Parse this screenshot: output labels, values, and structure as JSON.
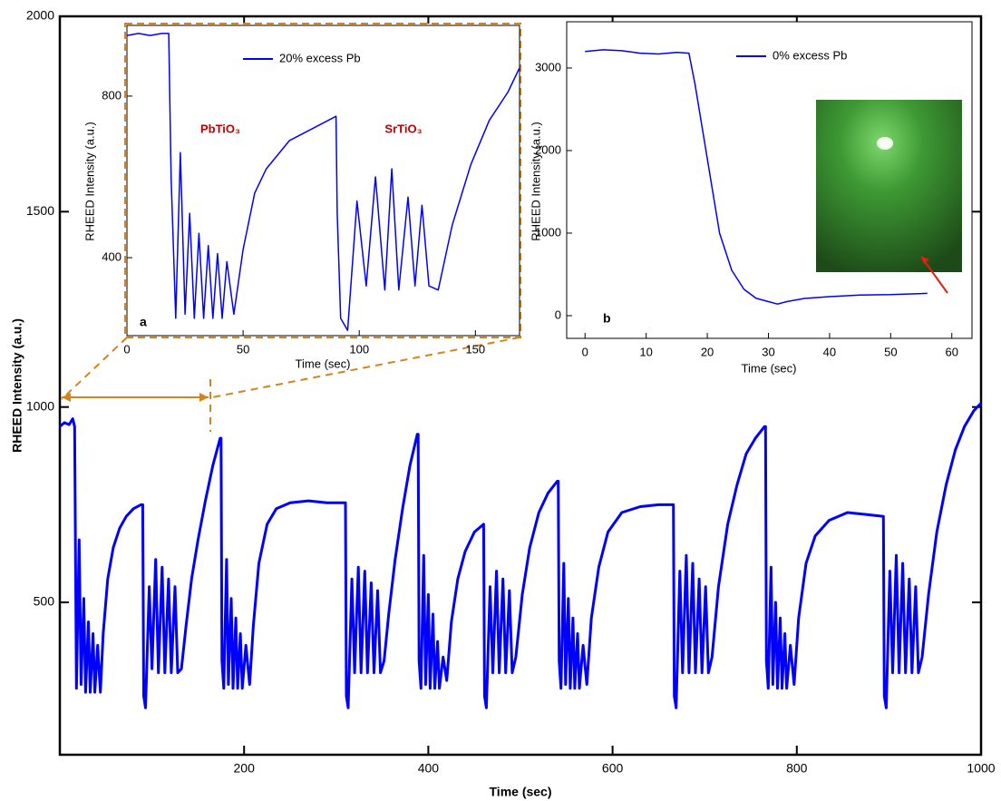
{
  "chart_data": [
    {
      "type": "line",
      "x_label": "Time (sec)",
      "y_label": "RHEED Intensity (a.u.)",
      "xlim": [
        0,
        1000
      ],
      "ylim": [
        110,
        2000
      ],
      "xticks": [
        200,
        400,
        600,
        800,
        1000
      ],
      "yticks": [
        500,
        1000,
        1500,
        2000
      ],
      "x": [
        0,
        5,
        10,
        14,
        16,
        18,
        21,
        23,
        26,
        28,
        31,
        33,
        36,
        38,
        41,
        44,
        47,
        52,
        58,
        65,
        72,
        80,
        88,
        90,
        91,
        93,
        97,
        100,
        104,
        107,
        111,
        114,
        118,
        121,
        125,
        128,
        132,
        137,
        143,
        150,
        158,
        166,
        174,
        175,
        176,
        178,
        181,
        183,
        186,
        188,
        191,
        193,
        196,
        198,
        202,
        206,
        210,
        216,
        225,
        235,
        250,
        270,
        290,
        310,
        311,
        313,
        317,
        320,
        324,
        327,
        331,
        334,
        338,
        341,
        345,
        348,
        352,
        357,
        364,
        372,
        380,
        388,
        389,
        390,
        392,
        395,
        397,
        400,
        402,
        405,
        407,
        410,
        412,
        416,
        420,
        425,
        432,
        440,
        450,
        460,
        461,
        463,
        467,
        470,
        474,
        477,
        481,
        484,
        488,
        491,
        495,
        502,
        510,
        520,
        530,
        540,
        541,
        542,
        544,
        547,
        549,
        552,
        554,
        557,
        559,
        562,
        564,
        568,
        572,
        577,
        585,
        595,
        610,
        630,
        650,
        666,
        667,
        669,
        673,
        676,
        680,
        683,
        687,
        690,
        694,
        697,
        701,
        704,
        708,
        715,
        725,
        735,
        745,
        755,
        765,
        766,
        767,
        769,
        772,
        774,
        777,
        779,
        782,
        784,
        787,
        789,
        793,
        797,
        802,
        810,
        820,
        835,
        855,
        875,
        894,
        895,
        897,
        901,
        904,
        908,
        911,
        915,
        918,
        922,
        925,
        929,
        932,
        936,
        943,
        952,
        962,
        972,
        982,
        992,
        1000
      ],
      "series": [
        {
          "color": "#0000ff",
          "values": [
            950,
            960,
            955,
            970,
            950,
            280,
            660,
            290,
            510,
            270,
            450,
            270,
            420,
            270,
            390,
            270,
            420,
            560,
            640,
            690,
            720,
            740,
            750,
            750,
            260,
            230,
            540,
            330,
            610,
            320,
            590,
            320,
            560,
            320,
            540,
            320,
            330,
            440,
            560,
            660,
            760,
            850,
            920,
            920,
            350,
            280,
            610,
            290,
            510,
            280,
            460,
            280,
            420,
            280,
            390,
            290,
            440,
            600,
            700,
            740,
            755,
            760,
            755,
            755,
            260,
            230,
            560,
            320,
            590,
            320,
            580,
            320,
            550,
            320,
            530,
            320,
            350,
            470,
            610,
            740,
            850,
            930,
            930,
            350,
            280,
            620,
            290,
            520,
            280,
            470,
            280,
            400,
            280,
            360,
            300,
            450,
            560,
            630,
            680,
            700,
            260,
            230,
            540,
            320,
            580,
            320,
            560,
            320,
            530,
            320,
            360,
            520,
            640,
            730,
            780,
            810,
            810,
            350,
            280,
            600,
            290,
            510,
            280,
            460,
            280,
            420,
            280,
            390,
            290,
            460,
            590,
            680,
            730,
            745,
            750,
            750,
            260,
            230,
            580,
            320,
            620,
            320,
            600,
            320,
            560,
            320,
            540,
            320,
            360,
            540,
            700,
            800,
            880,
            920,
            950,
            950,
            350,
            280,
            590,
            290,
            500,
            280,
            460,
            280,
            420,
            280,
            390,
            290,
            460,
            600,
            670,
            710,
            730,
            725,
            720,
            260,
            230,
            580,
            320,
            620,
            320,
            600,
            320,
            560,
            320,
            540,
            320,
            360,
            520,
            680,
            800,
            890,
            950,
            990,
            1010
          ]
        }
      ]
    },
    {
      "type": "line",
      "x_label": "Time (sec)",
      "y_label": "RHEED Intensity (a.u.)",
      "panel_label": "a",
      "annotations": [
        "PbTiO₃",
        "SrTiO₃"
      ],
      "annotation_color": "#c00000",
      "xlim": [
        0,
        169
      ],
      "ylim": [
        207,
        975
      ],
      "xticks": [
        0,
        50,
        100,
        150
      ],
      "yticks": [
        400,
        800
      ],
      "x": [
        0,
        5,
        10,
        15,
        18,
        19,
        21,
        23,
        25,
        27,
        29,
        31,
        33,
        35,
        37,
        39,
        41,
        43,
        46,
        50,
        55,
        60,
        70,
        80,
        90,
        90.5,
        92,
        95,
        99,
        103,
        107,
        111,
        114,
        117,
        121,
        124,
        127,
        130,
        134,
        140,
        148,
        156,
        164,
        169
      ],
      "series": [
        {
          "name": "20% excess Pb",
          "color": "#0000ff",
          "values": [
            950,
            955,
            950,
            955,
            955,
            600,
            250,
            660,
            260,
            510,
            250,
            460,
            250,
            430,
            250,
            410,
            250,
            390,
            260,
            420,
            560,
            620,
            690,
            720,
            750,
            510,
            250,
            220,
            540,
            330,
            600,
            320,
            620,
            320,
            550,
            330,
            530,
            330,
            320,
            480,
            630,
            740,
            810,
            870
          ]
        }
      ]
    },
    {
      "type": "line",
      "x_label": "Time (sec)",
      "y_label": "RHEED Intensity (a.u.)",
      "panel_label": "b",
      "xlim": [
        -3,
        63.3
      ],
      "ylim": [
        -275,
        3560
      ],
      "xticks": [
        0,
        10,
        20,
        30,
        40,
        50,
        60
      ],
      "yticks": [
        0,
        1000,
        2000,
        3000
      ],
      "x": [
        0,
        3,
        6,
        9,
        12,
        15,
        17,
        18,
        20,
        22,
        24,
        26,
        28,
        30,
        31.5,
        33,
        36,
        40,
        45,
        50,
        56
      ],
      "series": [
        {
          "name": "0% excess Pb",
          "color": "#0000ff",
          "values": [
            3200,
            3220,
            3210,
            3180,
            3170,
            3190,
            3180,
            2800,
            1900,
            1000,
            550,
            320,
            210,
            170,
            140,
            170,
            210,
            230,
            250,
            255,
            270
          ]
        }
      ]
    }
  ]
}
